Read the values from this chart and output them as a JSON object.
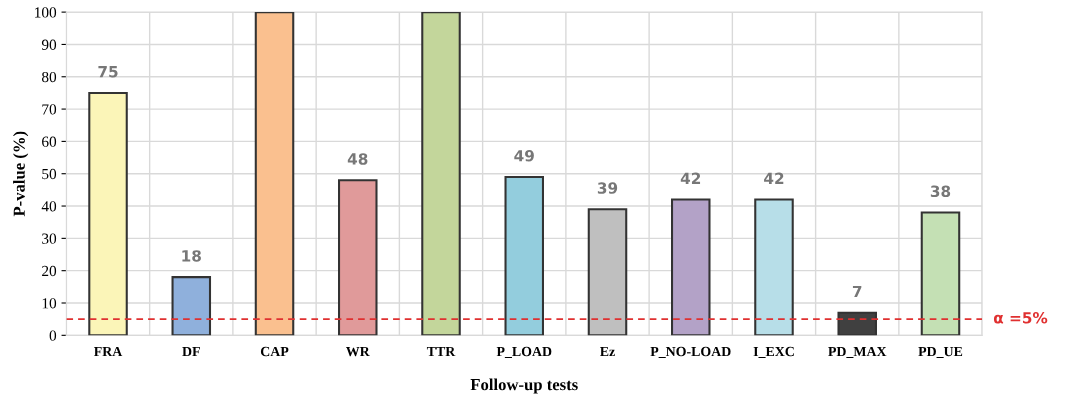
{
  "chart_data": {
    "type": "bar",
    "xlabel": "Follow-up tests",
    "ylabel": "P-value (%)",
    "categories": [
      "FRA",
      "DF",
      "CAP",
      "WR",
      "TTR",
      "P_LOAD",
      "Ez",
      "P_NO-LOAD",
      "I_EXC",
      "PD_MAX",
      "PD_UE"
    ],
    "values": [
      75,
      18,
      100,
      48,
      100,
      49,
      39,
      42,
      42,
      7,
      38
    ],
    "value_labels": [
      "75",
      "18",
      null,
      "48",
      null,
      "49",
      "39",
      "42",
      "42",
      "7",
      "38"
    ],
    "colors": [
      "#fbf5b8",
      "#8fb0dc",
      "#fac08f",
      "#e09a9a",
      "#c3d69b",
      "#93cddd",
      "#bfbfbf",
      "#b3a2c7",
      "#b7dee8",
      "#404040",
      "#c4e0b4"
    ],
    "ylim": [
      0,
      100
    ],
    "yticks": [
      0,
      10,
      20,
      30,
      40,
      50,
      60,
      70,
      80,
      90,
      100
    ],
    "grid": true,
    "ref_lines": [
      {
        "axis": "y",
        "value": 5,
        "label": "α =5%",
        "color": "#e03030",
        "line_style": "dashed"
      }
    ]
  }
}
